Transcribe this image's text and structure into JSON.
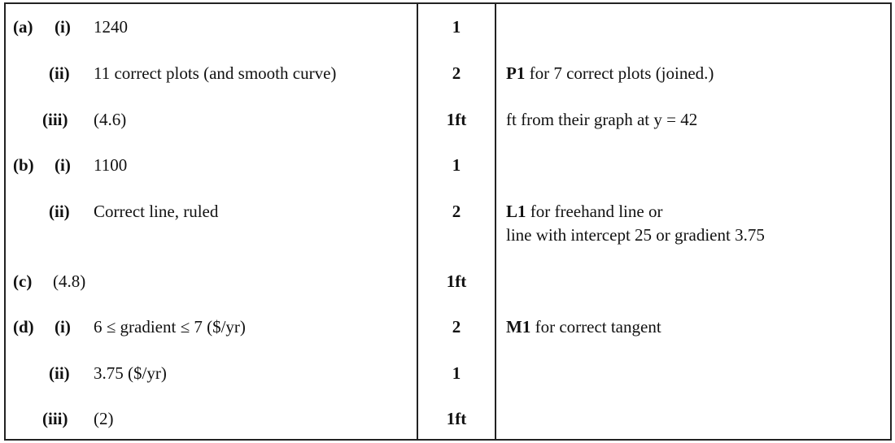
{
  "rows": [
    {
      "part": "(a)",
      "sub": "(i)",
      "answer": "1240",
      "mark": "1",
      "note_bold": "",
      "note": ""
    },
    {
      "part": "",
      "sub": "(ii)",
      "answer": "11 correct plots (and smooth curve)",
      "mark": "2",
      "note_bold": "P1",
      "note": "for 7 correct plots (joined.)"
    },
    {
      "part": "",
      "sub": "(iii)",
      "answer": "(4.6)",
      "mark": "1ft",
      "note_bold": "",
      "note": "ft from their graph at y = 42"
    },
    {
      "part": "(b)",
      "sub": "(i)",
      "answer": "1100",
      "mark": "1",
      "note_bold": "",
      "note": ""
    },
    {
      "part": "",
      "sub": "(ii)",
      "answer": "Correct line, ruled",
      "mark": "2",
      "note_bold": "L1",
      "note": "for freehand line or",
      "note_line2": "line with intercept 25 or gradient 3.75"
    },
    {
      "part": "(c)",
      "sub": "",
      "answer": "(4.8)",
      "mark": "1ft",
      "note_bold": "",
      "note": ""
    },
    {
      "part": "(d)",
      "sub": "(i)",
      "answer": "6 ≤ gradient ≤ 7 ($/yr)",
      "mark": "2",
      "note_bold": "M1",
      "note": "for correct tangent"
    },
    {
      "part": "",
      "sub": "(ii)",
      "answer": "3.75 ($/yr)",
      "mark": "1",
      "note_bold": "",
      "note": ""
    },
    {
      "part": "",
      "sub": "(iii)",
      "answer": "(2)",
      "mark": "1ft",
      "note_bold": "",
      "note": ""
    }
  ]
}
